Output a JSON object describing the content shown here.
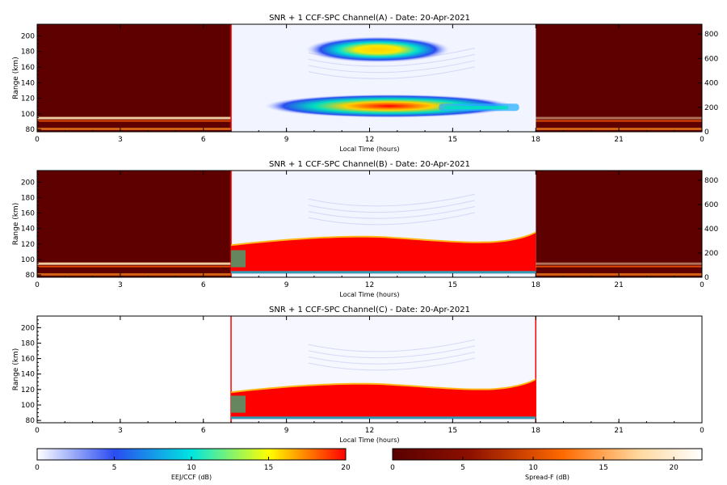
{
  "chart_data": [
    {
      "type": "heatmap",
      "title": "SNR + 1 CCF-SPC Channel(A) - Date: 20-Apr-2021",
      "xlabel": "Local Time (hours)",
      "ylabel": "Range (km)",
      "xlim": [
        0,
        24
      ],
      "ylim": [
        77,
        215
      ],
      "xticks": [
        "0",
        "3",
        "6",
        "9",
        "12",
        "15",
        "18",
        "21",
        "0"
      ],
      "yticks": [
        "80",
        "100",
        "120",
        "140",
        "160",
        "180",
        "200"
      ],
      "right_axis": {
        "ticks": [
          "0",
          "200",
          "400",
          "600",
          "800"
        ],
        "range": [
          0,
          880
        ]
      },
      "layers": {
        "spread_f_night": [
          [
            0,
            7
          ],
          [
            18,
            24
          ]
        ],
        "eej_ccf_day": [
          7,
          18
        ]
      },
      "echo_regions": [
        {
          "layer": "E",
          "range_km": [
            95,
            125
          ],
          "time_h": [
            8.5,
            17.5
          ],
          "peak_db": 20
        },
        {
          "layer": "150-km",
          "range_km": [
            170,
            195
          ],
          "time_h": [
            9.7,
            14.9
          ],
          "peak_db": 15
        }
      ]
    },
    {
      "type": "heatmap",
      "title": "SNR + 1 CCF-SPC Channel(B) - Date: 20-Apr-2021",
      "xlabel": "Local Time (hours)",
      "ylabel": "Range (km)",
      "xlim": [
        0,
        24
      ],
      "ylim": [
        77,
        215
      ],
      "xticks": [
        "0",
        "3",
        "6",
        "9",
        "12",
        "15",
        "18",
        "21",
        "0"
      ],
      "yticks": [
        "80",
        "100",
        "120",
        "140",
        "160",
        "180",
        "200"
      ],
      "right_axis": {
        "ticks": [
          "0",
          "200",
          "400",
          "600",
          "800"
        ],
        "range": [
          0,
          880
        ]
      },
      "layers": {
        "spread_f_night": [
          [
            0,
            7
          ],
          [
            18,
            24
          ]
        ],
        "eej_ccf_day": [
          7,
          18
        ]
      },
      "echo_regions": [
        {
          "layer": "E",
          "range_km": [
            84,
            130
          ],
          "time_h": [
            7,
            18
          ],
          "peak_db": 20
        }
      ]
    },
    {
      "type": "heatmap",
      "title": "SNR + 1 CCF-SPC Channel(C) - Date: 20-Apr-2021",
      "xlabel": "Local Time (hours)",
      "ylabel": "Range (km)",
      "xlim": [
        0,
        24
      ],
      "ylim": [
        77,
        215
      ],
      "xticks": [
        "0",
        "3",
        "6",
        "9",
        "12",
        "15",
        "18",
        "21",
        "0"
      ],
      "yticks": [
        "80",
        "100",
        "120",
        "140",
        "160",
        "180",
        "200"
      ],
      "echo_regions": [
        {
          "layer": "E",
          "range_km": [
            84,
            128
          ],
          "time_h": [
            7,
            18
          ],
          "peak_db": 20
        }
      ]
    }
  ],
  "colorbars": [
    {
      "label": "EEJ/CCF (dB)",
      "ticks": [
        "0",
        "5",
        "10",
        "15",
        "20"
      ],
      "range": [
        0,
        20
      ],
      "colors": [
        "#ffffff",
        "#2a4cf0",
        "#00e5e0",
        "#ffff00",
        "#ff0000"
      ]
    },
    {
      "label": "Spread-F (dB)",
      "ticks": [
        "0",
        "5",
        "10",
        "15",
        "20"
      ],
      "range": [
        0,
        22
      ],
      "colors": [
        "#5a0000",
        "#8c1000",
        "#ff6a00",
        "#ffd9a0",
        "#ffffff"
      ]
    }
  ]
}
